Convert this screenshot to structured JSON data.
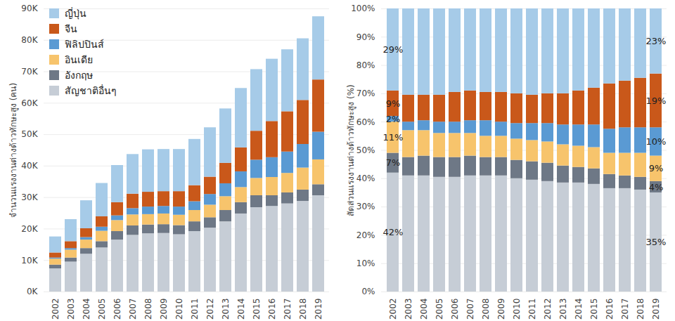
{
  "chart_data": [
    {
      "type": "bar",
      "stacked": true,
      "grid": true,
      "legend": "top-left",
      "y_label": "จำนวนแรงงานต่างด้าวทักษะสูง (คน)",
      "categories": [
        "2002",
        "2003",
        "2004",
        "2005",
        "2006",
        "2007",
        "2008",
        "2009",
        "2010",
        "2011",
        "2012",
        "2013",
        "2014",
        "2015",
        "2016",
        "2017",
        "2018",
        "2019"
      ],
      "ylim": [
        0,
        90000
      ],
      "yticks": [
        {
          "value": 0,
          "label": "0K"
        },
        {
          "value": 10000,
          "label": "10K"
        },
        {
          "value": 20000,
          "label": "20K"
        },
        {
          "value": 30000,
          "label": "30K"
        },
        {
          "value": 40000,
          "label": "40K"
        },
        {
          "value": 50000,
          "label": "50K"
        },
        {
          "value": 60000,
          "label": "60K"
        },
        {
          "value": 70000,
          "label": "70K"
        },
        {
          "value": 80000,
          "label": "80K"
        },
        {
          "value": 90000,
          "label": "90K"
        }
      ],
      "series": [
        {
          "name": "ญี่ปุ่น",
          "color": "#a6cbe8",
          "values": [
            5100,
            7000,
            8900,
            10600,
            11800,
            12600,
            13500,
            13400,
            13400,
            14700,
            15700,
            17300,
            18900,
            19600,
            19800,
            19700,
            19600,
            20100
          ]
        },
        {
          "name": "จีน",
          "color": "#c9581a",
          "values": [
            1600,
            2200,
            2800,
            3300,
            4200,
            4600,
            4700,
            4700,
            4900,
            5100,
            5500,
            6500,
            7600,
            9200,
            11500,
            12800,
            14000,
            16600
          ]
        },
        {
          "name": "ฟิลิปปินส์",
          "color": "#5a9ad3",
          "values": [
            350,
            500,
            800,
            1300,
            1500,
            2000,
            2400,
            2400,
            2600,
            2800,
            3400,
            4100,
            5000,
            5800,
            6300,
            6800,
            7500,
            8800
          ]
        },
        {
          "name": "อินเดีย",
          "color": "#f7c46c",
          "values": [
            1900,
            2500,
            2700,
            3300,
            3500,
            3500,
            3300,
            3400,
            3300,
            3600,
            4000,
            4400,
            4800,
            5500,
            5800,
            6200,
            7000,
            7900
          ]
        },
        {
          "name": "อังกฤษ",
          "color": "#6e7886",
          "values": [
            1200,
            1300,
            1800,
            2000,
            2700,
            3000,
            2800,
            2800,
            2900,
            3100,
            3300,
            3600,
            3600,
            3800,
            3400,
            3500,
            3600,
            3500
          ]
        },
        {
          "name": "สัญชาติอื่นๆ",
          "color": "#c6cdd6",
          "values": [
            7350,
            9500,
            12000,
            14000,
            16500,
            18000,
            18500,
            18600,
            18200,
            19200,
            20300,
            22300,
            24800,
            26800,
            27200,
            28000,
            28800,
            30600
          ]
        }
      ]
    },
    {
      "type": "bar",
      "stacked": true,
      "grid": true,
      "data_labels": true,
      "y_label": "สัดส่วนแรงงานต่างด้าวทักษะสูง (%)",
      "categories": [
        "2002",
        "2003",
        "2004",
        "2005",
        "2006",
        "2007",
        "2008",
        "2009",
        "2010",
        "2011",
        "2012",
        "2013",
        "2014",
        "2015",
        "2016",
        "2017",
        "2018",
        "2019"
      ],
      "ylim": [
        0,
        100
      ],
      "yticks": [
        {
          "value": 0,
          "label": "0%"
        },
        {
          "value": 10,
          "label": "10%"
        },
        {
          "value": 20,
          "label": "20%"
        },
        {
          "value": 30,
          "label": "30%"
        },
        {
          "value": 40,
          "label": "40%"
        },
        {
          "value": 50,
          "label": "50%"
        },
        {
          "value": 60,
          "label": "60%"
        },
        {
          "value": 70,
          "label": "70%"
        },
        {
          "value": 80,
          "label": "80%"
        },
        {
          "value": 90,
          "label": "90%"
        },
        {
          "value": 100,
          "label": "100%"
        }
      ],
      "series": [
        {
          "name": "ญี่ปุ่น",
          "color": "#a6cbe8",
          "values": [
            29,
            30.5,
            30.5,
            30.5,
            29.5,
            29,
            29.5,
            29.5,
            30,
            30.5,
            30,
            30,
            29,
            28,
            26.5,
            25.5,
            24.5,
            23
          ],
          "value_labels": [
            "29%",
            null,
            null,
            null,
            null,
            null,
            null,
            null,
            null,
            null,
            null,
            null,
            null,
            null,
            null,
            null,
            null,
            "23%"
          ]
        },
        {
          "name": "จีน",
          "color": "#c9581a",
          "values": [
            9,
            9.5,
            9,
            9.5,
            10.5,
            10.5,
            10,
            10.5,
            10.5,
            10,
            10.5,
            11,
            12,
            13,
            16,
            16.5,
            17.5,
            19
          ],
          "value_labels": [
            "9%",
            null,
            null,
            null,
            null,
            null,
            null,
            null,
            null,
            null,
            null,
            null,
            null,
            null,
            null,
            null,
            null,
            "19%"
          ]
        },
        {
          "name": "ฟิลิปปินส์",
          "color": "#5a9ad3",
          "values": [
            2,
            3,
            3.5,
            4,
            4,
            4.5,
            5.5,
            5,
            5.5,
            6,
            6.5,
            7,
            7.5,
            8,
            8.5,
            9,
            9,
            10
          ],
          "value_labels": [
            "2%",
            null,
            null,
            null,
            null,
            null,
            null,
            null,
            null,
            null,
            null,
            null,
            null,
            null,
            null,
            null,
            null,
            "10%"
          ]
        },
        {
          "name": "อินเดีย",
          "color": "#f7c46c",
          "values": [
            11,
            9.5,
            9,
            8.5,
            8.5,
            8,
            7.5,
            7.5,
            7.5,
            7.5,
            7.5,
            7.5,
            7.5,
            7.5,
            7.5,
            8,
            8.5,
            9
          ],
          "value_labels": [
            "11%",
            null,
            null,
            null,
            null,
            null,
            null,
            null,
            null,
            null,
            null,
            null,
            null,
            null,
            null,
            null,
            null,
            "9%"
          ]
        },
        {
          "name": "อังกฤษ",
          "color": "#6e7886",
          "values": [
            7,
            6.5,
            7,
            7,
            7,
            7,
            6.5,
            6.5,
            6.5,
            6.5,
            6.5,
            6,
            5.5,
            5.5,
            5,
            4.5,
            4.5,
            4
          ],
          "value_labels": [
            "7%",
            null,
            null,
            null,
            null,
            null,
            null,
            null,
            null,
            null,
            null,
            null,
            null,
            null,
            null,
            null,
            null,
            "4%"
          ]
        },
        {
          "name": "สัญชาติอื่นๆ",
          "color": "#c6cdd6",
          "values": [
            42,
            41,
            41,
            40.5,
            40.5,
            41,
            41,
            41,
            40,
            39.5,
            39,
            38.5,
            38.5,
            38,
            36.5,
            36.5,
            36,
            35
          ],
          "value_labels": [
            "42%",
            null,
            null,
            null,
            null,
            null,
            null,
            null,
            null,
            null,
            null,
            null,
            null,
            null,
            null,
            null,
            null,
            "35%"
          ]
        }
      ]
    }
  ]
}
